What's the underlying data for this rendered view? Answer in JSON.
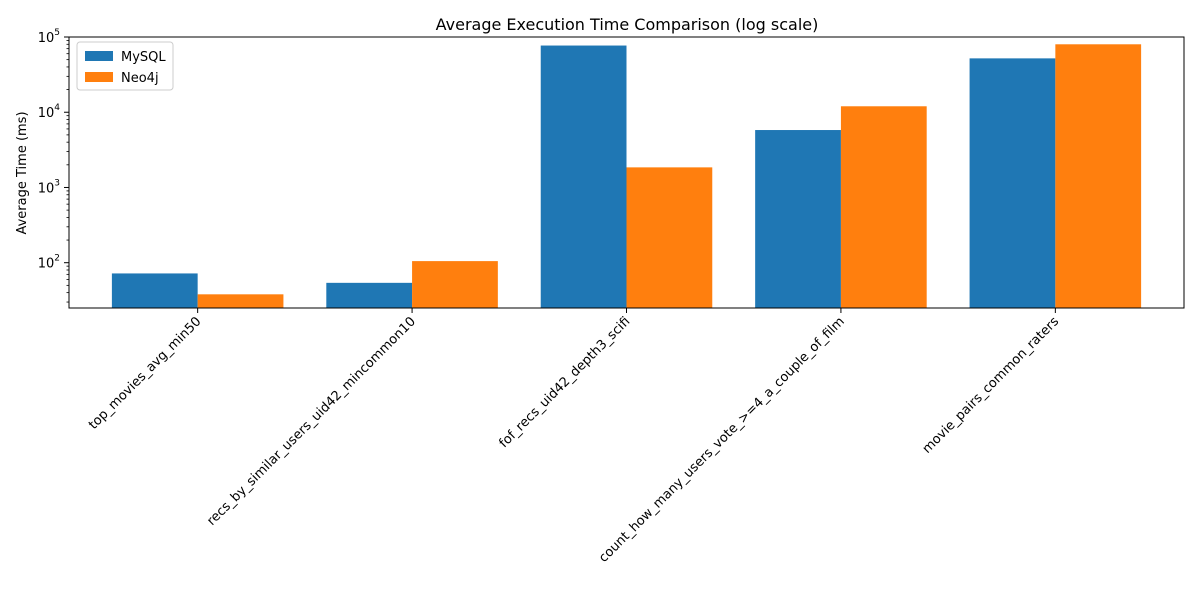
{
  "chart_data": {
    "type": "bar",
    "title": "Average Execution Time Comparison (log scale)",
    "xlabel": "",
    "ylabel": "Average Time (ms)",
    "yscale": "log",
    "ylim": [
      25,
      100000
    ],
    "yticks": [
      100,
      1000,
      10000,
      100000
    ],
    "ytick_labels": [
      {
        "base": "10",
        "exp": "2"
      },
      {
        "base": "10",
        "exp": "3"
      },
      {
        "base": "10",
        "exp": "4"
      },
      {
        "base": "10",
        "exp": "5"
      }
    ],
    "grid": false,
    "legend_position": "top-left",
    "categories": [
      "top_movies_avg_min50",
      "recs_by_similar_users_uid42_mincommon10",
      "fof_recs_uid42_depth3_scifi",
      "count_how_many_users_vote_>=4_a_couple_of_film",
      "movie_pairs_common_raters"
    ],
    "series": [
      {
        "name": "MySQL",
        "color": "#1f77b4",
        "values": [
          72,
          54,
          77000,
          5800,
          52000
        ]
      },
      {
        "name": "Neo4j",
        "color": "#ff7f0e",
        "values": [
          38,
          105,
          1850,
          12000,
          80000
        ]
      }
    ]
  }
}
